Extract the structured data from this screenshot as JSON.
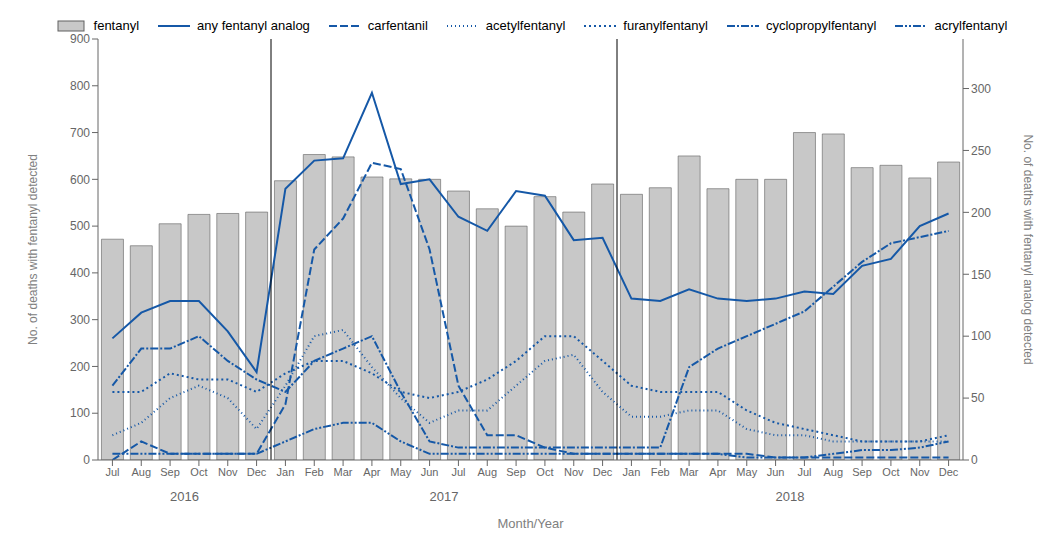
{
  "chart_data": {
    "type": "combo",
    "x_label": "Month/Year",
    "y_label": "No. of deaths with fentanyl detected",
    "y2_label": "No. of deaths with fentanyl analog detected",
    "categories": [
      "Jul",
      "Aug",
      "Sep",
      "Oct",
      "Nov",
      "Dec",
      "Jan",
      "Feb",
      "Mar",
      "Apr",
      "May",
      "Jun",
      "Jul",
      "Aug",
      "Sep",
      "Oct",
      "Nov",
      "Dec",
      "Jan",
      "Feb",
      "Mar",
      "Apr",
      "May",
      "Jun",
      "Jul",
      "Aug",
      "Sep",
      "Oct",
      "Nov",
      "Dec"
    ],
    "series": [
      {
        "name": "fentanyl",
        "type": "bar",
        "color": "#c8c8c8",
        "edge_color": "#606060",
        "values": [
          472,
          458,
          505,
          525,
          527,
          530,
          597,
          653,
          648,
          605,
          601,
          600,
          575,
          537,
          500,
          563,
          530,
          590,
          568,
          582,
          650,
          580,
          600,
          600,
          700,
          697,
          625,
          630,
          603,
          637
        ]
      },
      {
        "name": "any fentanyl analog",
        "type": "line",
        "line_style": "solid",
        "color": "#1558a7",
        "values": [
          260,
          315,
          340,
          340,
          275,
          188,
          580,
          640,
          645,
          785,
          590,
          600,
          520,
          490,
          575,
          565,
          470,
          475,
          345,
          340,
          365,
          345,
          340,
          345,
          360,
          355,
          415,
          430,
          500,
          527
        ]
      },
      {
        "name": "carfentanil",
        "type": "line",
        "axis": "y2",
        "line_style": "dashed",
        "color": "#1558a7",
        "values": [
          0,
          15,
          5,
          5,
          5,
          5,
          45,
          170,
          195,
          240,
          235,
          170,
          60,
          20,
          20,
          10,
          5,
          5,
          5,
          5,
          5,
          5,
          5,
          2,
          2,
          2,
          2,
          2,
          2,
          2
        ]
      },
      {
        "name": "acetylfentanyl",
        "type": "line",
        "axis": "y2",
        "line_style": "dotted",
        "color": "#1558a7",
        "values": [
          20,
          30,
          50,
          60,
          50,
          25,
          60,
          100,
          105,
          75,
          50,
          30,
          40,
          40,
          60,
          80,
          85,
          55,
          35,
          35,
          40,
          40,
          25,
          20,
          20,
          15,
          15,
          15,
          15,
          15
        ]
      },
      {
        "name": "furanylfentanyl",
        "type": "line",
        "axis": "y2",
        "line_style": "shortdashed",
        "color": "#1558a7",
        "values": [
          55,
          55,
          70,
          65,
          65,
          55,
          70,
          80,
          80,
          70,
          55,
          50,
          55,
          65,
          80,
          100,
          100,
          80,
          60,
          55,
          55,
          55,
          40,
          30,
          25,
          20,
          15,
          15,
          15,
          20
        ]
      },
      {
        "name": "cyclopropylfentanyl",
        "type": "line",
        "axis": "y2",
        "line_style": "dashdot",
        "color": "#1558a7",
        "values": [
          60,
          90,
          90,
          100,
          80,
          65,
          55,
          80,
          90,
          100,
          55,
          15,
          10,
          10,
          10,
          10,
          10,
          10,
          10,
          10,
          75,
          90,
          100,
          110,
          120,
          140,
          160,
          175,
          180,
          185
        ]
      },
      {
        "name": "acrylfentanyl",
        "type": "line",
        "axis": "y2",
        "line_style": "dashdotdot",
        "color": "#1558a7",
        "values": [
          5,
          5,
          5,
          5,
          5,
          5,
          15,
          25,
          30,
          30,
          15,
          5,
          5,
          5,
          5,
          5,
          5,
          5,
          5,
          5,
          5,
          5,
          2,
          2,
          2,
          5,
          8,
          8,
          10,
          15
        ]
      }
    ],
    "ylim": [
      0,
      900
    ],
    "yticks": [
      0,
      100,
      200,
      300,
      400,
      500,
      600,
      700,
      800,
      900
    ],
    "y2lim": [
      0,
      340
    ],
    "y2ticks": [
      0,
      50,
      100,
      150,
      200,
      250,
      300
    ],
    "grid": false,
    "legend": "top",
    "annotations": [
      {
        "text": "2016",
        "x": 2.5
      },
      {
        "text": "2017",
        "x": 11.5
      },
      {
        "text": "2018",
        "x": 23.5
      }
    ],
    "vlines": [
      5.5,
      17.5
    ]
  }
}
